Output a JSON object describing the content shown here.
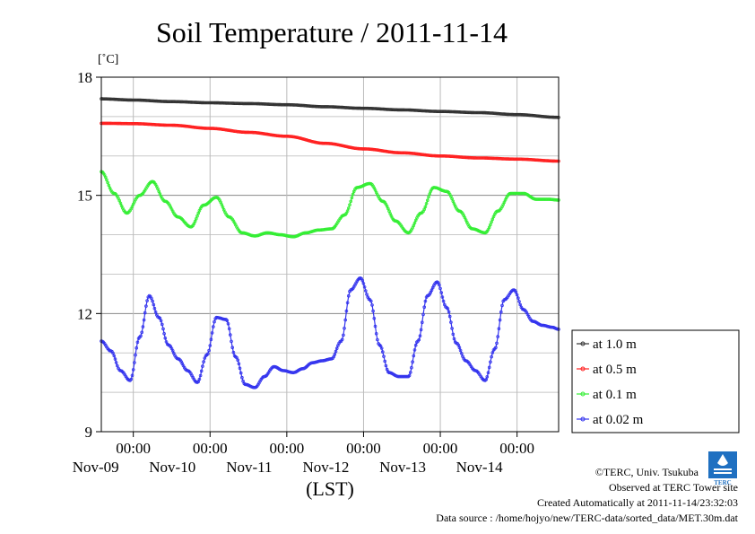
{
  "chart_data": {
    "type": "line",
    "title": "Soil Temperature / 2011-11-14",
    "ylabel": "[˚C]",
    "xlabel": "(LST)",
    "ylim": [
      9,
      18
    ],
    "y_ticks": [
      "9",
      "12",
      "15",
      "18"
    ],
    "x_ticks": [
      {
        "time": "00:00",
        "date": "Nov-09"
      },
      {
        "time": "00:00",
        "date": "Nov-10"
      },
      {
        "time": "00:00",
        "date": "Nov-11"
      },
      {
        "time": "00:00",
        "date": "Nov-12"
      },
      {
        "time": "00:00",
        "date": "Nov-13"
      },
      {
        "time": "00:00",
        "date": "Nov-14"
      }
    ],
    "x_unit": "hours from 2011-11-08 00:00 LST",
    "xlim": [
      14,
      157
    ],
    "grid": true,
    "legend_position": "right",
    "series": [
      {
        "name": "at 1.0 m",
        "color": "#333333",
        "x": [
          14,
          24,
          36,
          48,
          60,
          72,
          84,
          96,
          108,
          120,
          132,
          144,
          157
        ],
        "y": [
          17.45,
          17.42,
          17.38,
          17.35,
          17.33,
          17.3,
          17.25,
          17.21,
          17.17,
          17.13,
          17.1,
          17.05,
          16.98
        ]
      },
      {
        "name": "at 0.5 m",
        "color": "#ff2020",
        "x": [
          14,
          24,
          36,
          48,
          60,
          72,
          84,
          96,
          108,
          120,
          132,
          144,
          157
        ],
        "y": [
          16.83,
          16.82,
          16.78,
          16.7,
          16.6,
          16.5,
          16.32,
          16.18,
          16.08,
          16.0,
          15.95,
          15.92,
          15.87
        ]
      },
      {
        "name": "at 0.1 m",
        "color": "#33ee33",
        "x": [
          14,
          18,
          22,
          26,
          30,
          34,
          38,
          42,
          46,
          50,
          54,
          58,
          62,
          66,
          70,
          74,
          78,
          82,
          86,
          90,
          94,
          98,
          102,
          106,
          110,
          114,
          118,
          122,
          126,
          130,
          134,
          138,
          142,
          146,
          150,
          154,
          157
        ],
        "y": [
          15.6,
          15.05,
          14.55,
          15.0,
          15.35,
          14.85,
          14.45,
          14.2,
          14.75,
          14.95,
          14.45,
          14.05,
          13.97,
          14.05,
          14.0,
          13.95,
          14.05,
          14.12,
          14.15,
          14.5,
          15.2,
          15.3,
          14.85,
          14.35,
          14.05,
          14.55,
          15.2,
          15.1,
          14.6,
          14.15,
          14.05,
          14.6,
          15.05,
          15.05,
          14.9,
          14.9,
          14.88
        ]
      },
      {
        "name": "at 0.02 m",
        "color": "#3333ee",
        "x": [
          14,
          17,
          20,
          23,
          26,
          29,
          32,
          35,
          38,
          41,
          44,
          47,
          50,
          53,
          56,
          59,
          62,
          65,
          68,
          71,
          74,
          77,
          80,
          83,
          86,
          89,
          92,
          95,
          98,
          101,
          104,
          107,
          110,
          113,
          116,
          119,
          122,
          125,
          128,
          131,
          134,
          137,
          140,
          143,
          146,
          149,
          152,
          155,
          157
        ],
        "y": [
          11.3,
          11.05,
          10.55,
          10.3,
          11.4,
          12.45,
          11.9,
          11.2,
          10.85,
          10.55,
          10.25,
          10.95,
          11.9,
          11.85,
          10.9,
          10.2,
          10.12,
          10.4,
          10.65,
          10.55,
          10.5,
          10.6,
          10.75,
          10.8,
          10.85,
          11.3,
          12.6,
          12.9,
          12.35,
          11.2,
          10.5,
          10.4,
          10.4,
          11.3,
          12.45,
          12.8,
          12.15,
          11.25,
          10.8,
          10.55,
          10.3,
          11.1,
          12.35,
          12.6,
          12.1,
          11.8,
          11.7,
          11.65,
          11.6
        ]
      }
    ]
  },
  "credits": {
    "copyright": "©TERC, Univ. Tsukuba",
    "site": "Observed at TERC Tower site",
    "created": "Created Automatically at 2011-11-14/23:32:03",
    "source": "Data source : /home/hojyo/new/TERC-data/sorted_data/MET.30m.dat",
    "logo_text": "TERC"
  }
}
